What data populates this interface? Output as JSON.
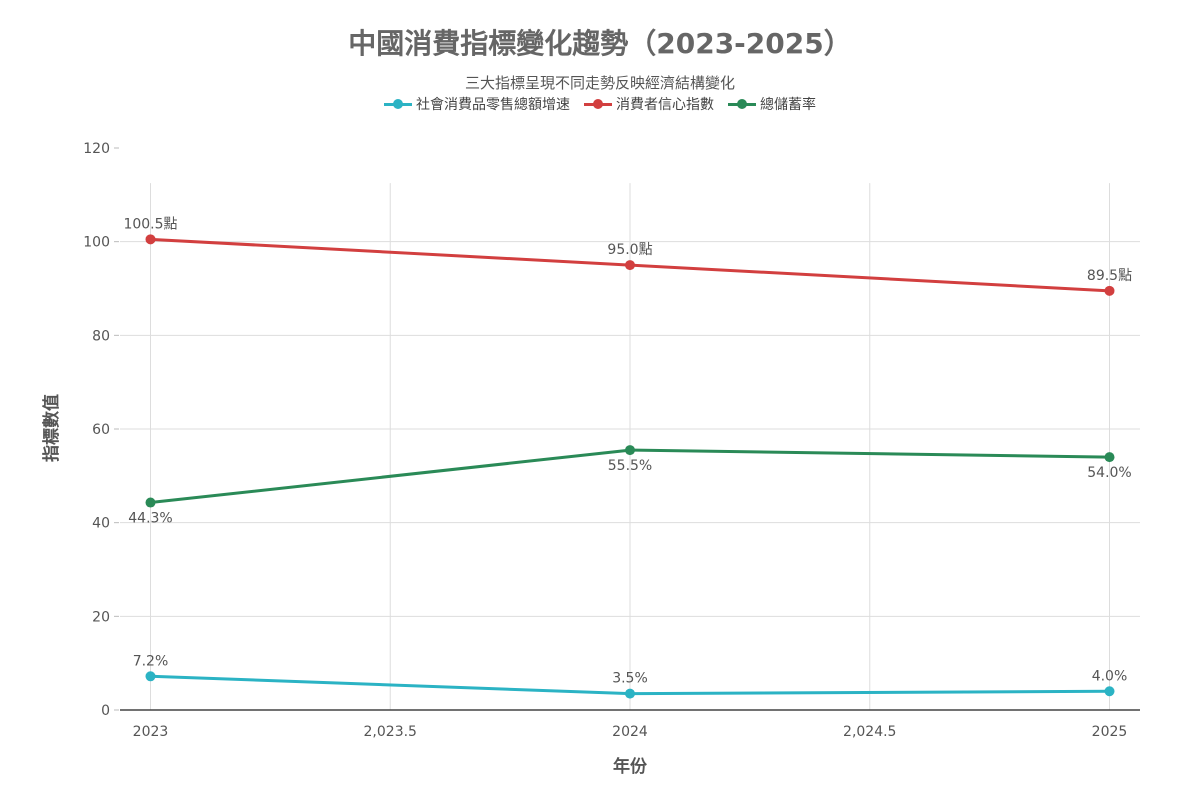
{
  "chart_data": {
    "type": "line",
    "title": "中國消費指標變化趨勢（2023-2025）",
    "subtitle": "三大指標呈現不同走勢反映經濟結構變化",
    "xlabel": "年份",
    "ylabel": "指標數值",
    "x": [
      2023,
      2024,
      2025
    ],
    "x_ticks": [
      "2023",
      "2,023.5",
      "2024",
      "2,024.5",
      "2025"
    ],
    "x_tick_values": [
      2023,
      2023.5,
      2024,
      2024.5,
      2025
    ],
    "xlim": [
      2022.9364,
      2025.0636
    ],
    "ylim": [
      0,
      120
    ],
    "y_ticks": [
      "0",
      "20",
      "40",
      "60",
      "80",
      "100",
      "120"
    ],
    "y_tick_values": [
      0,
      20,
      40,
      60,
      80,
      100,
      120
    ],
    "grid": true,
    "legend_position": "top",
    "series": [
      {
        "name": "社會消費品零售總額增速",
        "color": "#2bb3c4",
        "values": [
          7.2,
          3.5,
          4.0
        ],
        "labels": [
          "7.2%",
          "3.5%",
          "4.0%"
        ],
        "label_position": "above"
      },
      {
        "name": "消費者信心指數",
        "color": "#d23f3f",
        "values": [
          100.5,
          95.0,
          89.5
        ],
        "labels": [
          "100.5點",
          "95.0點",
          "89.5點"
        ],
        "label_position": "above"
      },
      {
        "name": "總儲蓄率",
        "color": "#2a8a57",
        "values": [
          44.3,
          55.5,
          54.0
        ],
        "labels": [
          "44.3%",
          "55.5%",
          "54.0%"
        ],
        "label_position": "below"
      }
    ]
  }
}
